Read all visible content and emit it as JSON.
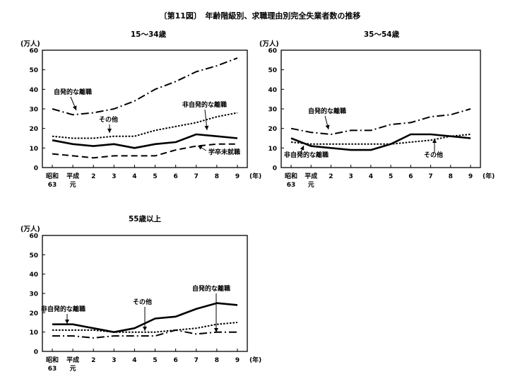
{
  "title": "〔第11図〕　年齢階級別、求職理由別完全失業者数の推移",
  "chart_data": [
    {
      "type": "line",
      "title": "15～34歳",
      "ylabel": "(万人)",
      "xunit": "(年)",
      "ylim": [
        0,
        60
      ],
      "yticks": [
        0,
        10,
        20,
        30,
        40,
        50,
        60
      ],
      "xticks": [
        [
          "昭和",
          "63"
        ],
        [
          "平成",
          "元"
        ],
        [
          "2"
        ],
        [
          "3"
        ],
        [
          "4"
        ],
        [
          "5"
        ],
        [
          "6"
        ],
        [
          "7"
        ],
        [
          "8"
        ],
        [
          "9"
        ]
      ],
      "series": [
        {
          "name": "自発的な離職",
          "values": [
            30,
            27,
            28,
            30,
            34,
            40,
            44,
            49,
            52,
            56
          ]
        },
        {
          "name": "非自発的な離職",
          "values": [
            14,
            12,
            11,
            12,
            10,
            12,
            13,
            17,
            16,
            15
          ]
        },
        {
          "name": "その他",
          "values": [
            16,
            15,
            15,
            16,
            16,
            19,
            21,
            23,
            26,
            28
          ]
        },
        {
          "name": "学卒未就職",
          "values": [
            7,
            6,
            5,
            6,
            6,
            6,
            9,
            11,
            12,
            12
          ]
        }
      ],
      "annotations": [
        "自発的な離職",
        "非自発的な離職",
        "その他",
        "学卒未就職"
      ]
    },
    {
      "type": "line",
      "title": "35～54歳",
      "ylabel": "(万人)",
      "xunit": "(年)",
      "ylim": [
        0,
        60
      ],
      "yticks": [
        0,
        10,
        20,
        30,
        40,
        50,
        60
      ],
      "xticks": [
        [
          "昭和",
          "63"
        ],
        [
          "平成",
          "元"
        ],
        [
          "2"
        ],
        [
          "3"
        ],
        [
          "4"
        ],
        [
          "5"
        ],
        [
          "6"
        ],
        [
          "7"
        ],
        [
          "8"
        ],
        [
          "9"
        ]
      ],
      "series": [
        {
          "name": "自発的な離職",
          "values": [
            20,
            18,
            17,
            19,
            19,
            22,
            23,
            26,
            27,
            30
          ]
        },
        {
          "name": "非自発的な離職",
          "values": [
            15,
            11,
            10,
            9,
            9,
            12,
            17,
            17,
            16,
            15
          ]
        },
        {
          "name": "その他",
          "values": [
            13,
            12,
            12,
            12,
            12,
            12,
            13,
            14,
            16,
            17
          ]
        }
      ],
      "annotations": [
        "自発的な離職",
        "非自発的な離職",
        "その他"
      ]
    },
    {
      "type": "line",
      "title": "55歳以上",
      "ylabel": "(万人)",
      "xunit": "(年)",
      "ylim": [
        0,
        60
      ],
      "yticks": [
        0,
        10,
        20,
        30,
        40,
        50,
        60
      ],
      "xticks": [
        [
          "昭和",
          "63"
        ],
        [
          "平成",
          "元"
        ],
        [
          "2"
        ],
        [
          "3"
        ],
        [
          "4"
        ],
        [
          "5"
        ],
        [
          "6"
        ],
        [
          "7"
        ],
        [
          "8"
        ],
        [
          "9"
        ]
      ],
      "series": [
        {
          "name": "自発的な離職",
          "values": [
            8,
            8,
            7,
            8,
            8,
            8,
            11,
            9,
            10,
            10
          ]
        },
        {
          "name": "非自発的な離職",
          "values": [
            14,
            14,
            12,
            10,
            12,
            17,
            18,
            22,
            25,
            24
          ]
        },
        {
          "name": "その他",
          "values": [
            11,
            11,
            11,
            10,
            10,
            10,
            11,
            12,
            14,
            15
          ]
        }
      ],
      "annotations": [
        "非自発的な離職",
        "その他",
        "自発的な離職"
      ]
    }
  ]
}
